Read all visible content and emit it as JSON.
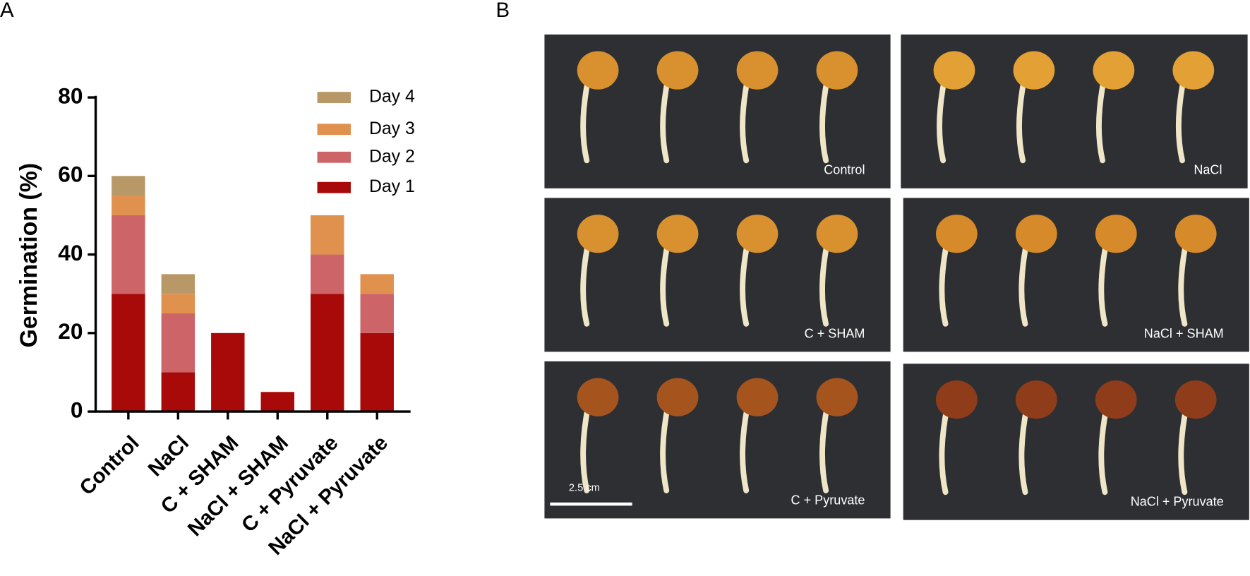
{
  "chart_data": {
    "type": "stacked_bar",
    "panel_label": "A",
    "ylabel": "Germination (%)",
    "categories": [
      "Control",
      "NaCl",
      "C + SHAM",
      "NaCl + SHAM",
      "C + Pyruvate",
      "NaCl + Pyruvate"
    ],
    "series": [
      {
        "name": "Day 1",
        "color": "#a80a0a",
        "values": [
          30,
          10,
          20,
          5,
          30,
          20
        ]
      },
      {
        "name": "Day 2",
        "color": "#cd6467",
        "values": [
          20,
          15,
          0,
          0,
          10,
          10
        ]
      },
      {
        "name": "Day 3",
        "color": "#e0914e",
        "values": [
          5,
          5,
          0,
          0,
          10,
          5
        ]
      },
      {
        "name": "Day 4",
        "color": "#b99868",
        "values": [
          5,
          5,
          0,
          0,
          0,
          0
        ]
      }
    ],
    "ylim": [
      0,
      80
    ],
    "yticks": [
      0,
      20,
      40,
      60,
      80
    ],
    "legend": "upper right"
  },
  "panel_b": {
    "label": "B",
    "images": [
      "Control",
      "NaCl",
      "C + SHAM",
      "NaCl + SHAM",
      "C + Pyruvate",
      "NaCl + Pyruvate"
    ],
    "scale_bar": "2.5 cm"
  }
}
